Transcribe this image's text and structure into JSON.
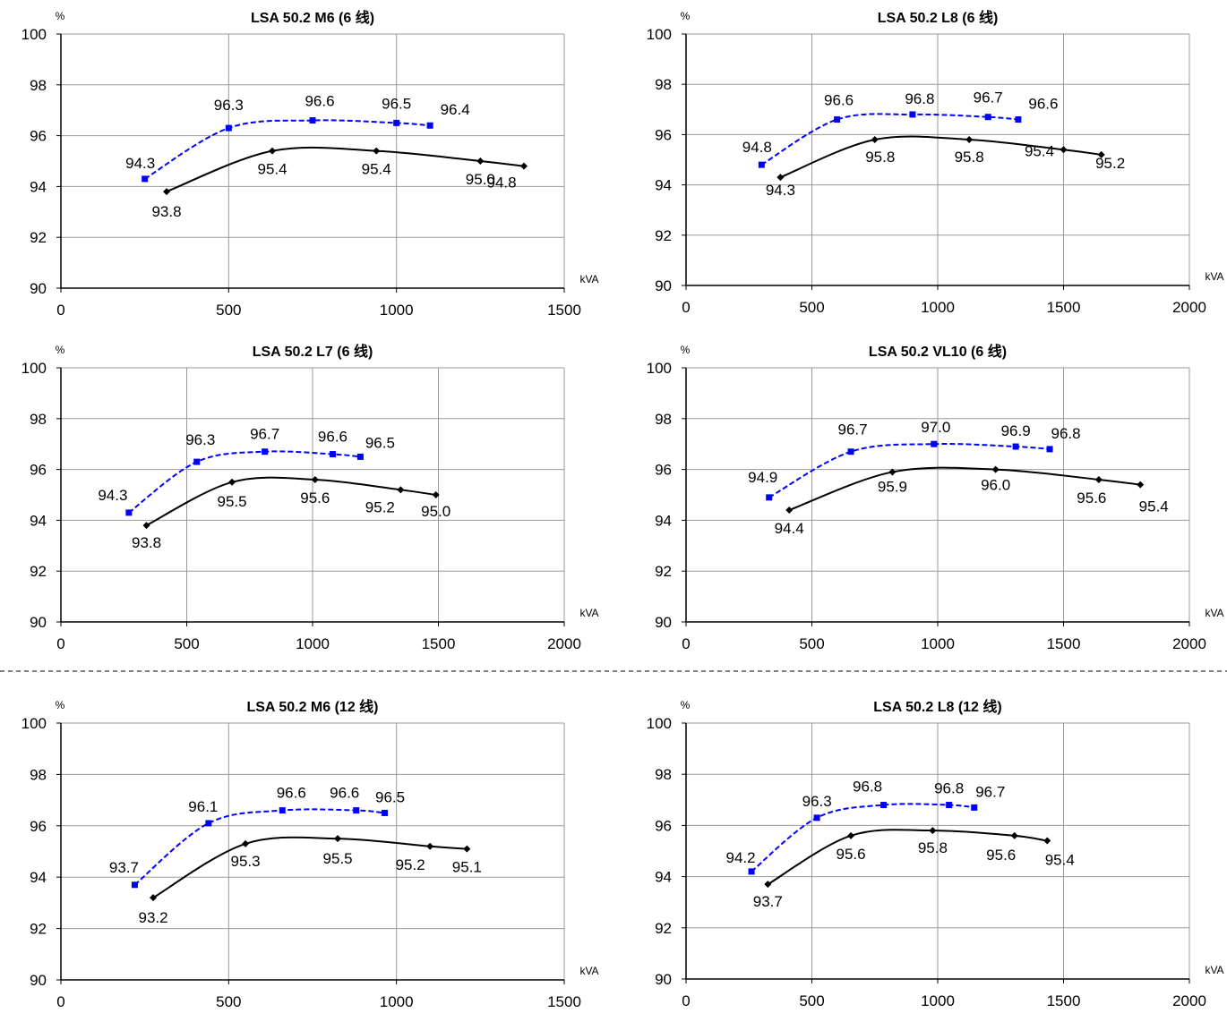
{
  "chart_data": [
    {
      "type": "line",
      "title": "LSA 50.2 M6 (6 线)",
      "xlabel": "kVA",
      "ylabel": "%",
      "xlim": [
        0,
        1500
      ],
      "ylim": [
        90,
        100
      ],
      "xticks": [
        0,
        500,
        1000,
        1500
      ],
      "yticks": [
        90,
        92,
        94,
        96,
        98,
        100
      ],
      "grid": true,
      "series": [
        {
          "style": "dashed",
          "color": "#0000ff",
          "marker": "square",
          "x": [
            250,
            500,
            750,
            1000,
            1100
          ],
          "y": [
            94.3,
            96.3,
            96.6,
            96.5,
            96.4
          ],
          "labels": [
            "94.3",
            "96.3",
            "96.6",
            "96.5",
            "96.4"
          ]
        },
        {
          "style": "solid",
          "color": "#000000",
          "marker": "diamond",
          "x": [
            315,
            630,
            940,
            1250,
            1380
          ],
          "y": [
            93.8,
            95.4,
            95.4,
            95.0,
            94.8
          ],
          "labels": [
            "93.8",
            "95.4",
            "95.4",
            "95.0",
            "94.8"
          ]
        }
      ]
    },
    {
      "type": "line",
      "title": "LSA 50.2 L8 (6 线)",
      "xlabel": "kVA",
      "ylabel": "%",
      "xlim": [
        0,
        2000
      ],
      "ylim": [
        90,
        100
      ],
      "xticks": [
        0,
        500,
        1000,
        1500,
        2000
      ],
      "yticks": [
        90,
        92,
        94,
        96,
        98,
        100
      ],
      "grid": true,
      "series": [
        {
          "style": "dashed",
          "color": "#0000ff",
          "marker": "square",
          "x": [
            300,
            600,
            900,
            1200,
            1320
          ],
          "y": [
            94.8,
            96.6,
            96.8,
            96.7,
            96.6
          ],
          "labels": [
            "94.8",
            "96.6",
            "96.8",
            "96.7",
            "96.6"
          ]
        },
        {
          "style": "solid",
          "color": "#000000",
          "marker": "diamond",
          "x": [
            375,
            750,
            1125,
            1500,
            1650
          ],
          "y": [
            94.3,
            95.8,
            95.8,
            95.4,
            95.2
          ],
          "labels": [
            "94.3",
            "95.8",
            "95.8",
            "95.4",
            "95.2"
          ]
        }
      ]
    },
    {
      "type": "line",
      "title": "LSA 50.2 L7 (6 线)",
      "xlabel": "kVA",
      "ylabel": "%",
      "xlim": [
        0,
        2000
      ],
      "ylim": [
        90,
        100
      ],
      "xticks": [
        0,
        500,
        1000,
        1500,
        2000
      ],
      "yticks": [
        90,
        92,
        94,
        96,
        98,
        100
      ],
      "grid": true,
      "series": [
        {
          "style": "dashed",
          "color": "#0000ff",
          "marker": "square",
          "x": [
            270,
            540,
            810,
            1080,
            1190
          ],
          "y": [
            94.3,
            96.3,
            96.7,
            96.6,
            96.5
          ],
          "labels": [
            "94.3",
            "96.3",
            "96.7",
            "96.6",
            "96.5"
          ]
        },
        {
          "style": "solid",
          "color": "#000000",
          "marker": "diamond",
          "x": [
            340,
            680,
            1010,
            1350,
            1490
          ],
          "y": [
            93.8,
            95.5,
            95.6,
            95.2,
            95.0
          ],
          "labels": [
            "93.8",
            "95.5",
            "95.6",
            "95.2",
            "95.0"
          ]
        }
      ]
    },
    {
      "type": "line",
      "title": "LSA 50.2 VL10 (6 线)",
      "xlabel": "kVA",
      "ylabel": "%",
      "xlim": [
        0,
        2000
      ],
      "ylim": [
        90,
        100
      ],
      "xticks": [
        0,
        500,
        1000,
        1500,
        2000
      ],
      "yticks": [
        90,
        92,
        94,
        96,
        98,
        100
      ],
      "grid": true,
      "series": [
        {
          "style": "dashed",
          "color": "#0000ff",
          "marker": "square",
          "x": [
            330,
            655,
            985,
            1310,
            1445
          ],
          "y": [
            94.9,
            96.7,
            97.0,
            96.9,
            96.8
          ],
          "labels": [
            "94.9",
            "96.7",
            "97.0",
            "96.9",
            "96.8"
          ]
        },
        {
          "style": "solid",
          "color": "#000000",
          "marker": "diamond",
          "x": [
            410,
            820,
            1230,
            1640,
            1805
          ],
          "y": [
            94.4,
            95.9,
            96.0,
            95.6,
            95.4
          ],
          "labels": [
            "94.4",
            "95.9",
            "96.0",
            "95.6",
            "95.4"
          ]
        }
      ]
    },
    {
      "type": "line",
      "title": "LSA 50.2 M6 (12 线)",
      "xlabel": "kVA",
      "ylabel": "%",
      "xlim": [
        0,
        1500
      ],
      "ylim": [
        90,
        100
      ],
      "xticks": [
        0,
        500,
        1000,
        1500
      ],
      "yticks": [
        90,
        92,
        94,
        96,
        98,
        100
      ],
      "grid": true,
      "series": [
        {
          "style": "dashed",
          "color": "#0000ff",
          "marker": "square",
          "x": [
            220,
            440,
            660,
            880,
            965
          ],
          "y": [
            93.7,
            96.1,
            96.6,
            96.6,
            96.5
          ],
          "labels": [
            "93.7",
            "96.1",
            "96.6",
            "96.6",
            "96.5"
          ]
        },
        {
          "style": "solid",
          "color": "#000000",
          "marker": "diamond",
          "x": [
            275,
            550,
            825,
            1100,
            1210
          ],
          "y": [
            93.2,
            95.3,
            95.5,
            95.2,
            95.1
          ],
          "labels": [
            "93.2",
            "95.3",
            "95.5",
            "95.2",
            "95.1"
          ]
        }
      ]
    },
    {
      "type": "line",
      "title": "LSA 50.2 L8 (12 线)",
      "xlabel": "kVA",
      "ylabel": "%",
      "xlim": [
        0,
        2000
      ],
      "ylim": [
        90,
        100
      ],
      "xticks": [
        0,
        500,
        1000,
        1500,
        2000
      ],
      "yticks": [
        90,
        92,
        94,
        96,
        98,
        100
      ],
      "grid": true,
      "series": [
        {
          "style": "dashed",
          "color": "#0000ff",
          "marker": "square",
          "x": [
            260,
            520,
            785,
            1045,
            1145
          ],
          "y": [
            94.2,
            96.3,
            96.8,
            96.8,
            96.7
          ],
          "labels": [
            "94.2",
            "96.3",
            "96.8",
            "96.8",
            "96.7"
          ]
        },
        {
          "style": "solid",
          "color": "#000000",
          "marker": "diamond",
          "x": [
            325,
            655,
            980,
            1305,
            1435
          ],
          "y": [
            93.7,
            95.6,
            95.8,
            95.6,
            95.4
          ],
          "labels": [
            "93.7",
            "95.6",
            "95.8",
            "95.6",
            "95.4"
          ]
        }
      ]
    }
  ]
}
